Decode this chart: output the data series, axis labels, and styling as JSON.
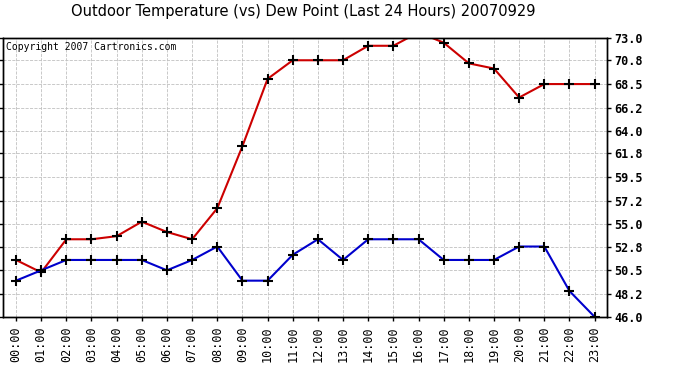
{
  "title": "Outdoor Temperature (vs) Dew Point (Last 24 Hours) 20070929",
  "copyright_text": "Copyright 2007 Cartronics.com",
  "hours": [
    "00:00",
    "01:00",
    "02:00",
    "03:00",
    "04:00",
    "05:00",
    "06:00",
    "07:00",
    "08:00",
    "09:00",
    "10:00",
    "11:00",
    "12:00",
    "13:00",
    "14:00",
    "15:00",
    "16:00",
    "17:00",
    "18:00",
    "19:00",
    "20:00",
    "21:00",
    "22:00",
    "23:00"
  ],
  "temp": [
    51.5,
    50.3,
    53.5,
    53.5,
    53.8,
    55.2,
    54.2,
    53.5,
    56.5,
    62.5,
    69.0,
    70.8,
    70.8,
    70.8,
    72.2,
    72.2,
    73.5,
    72.5,
    70.5,
    70.0,
    67.2,
    68.5,
    68.5,
    68.5
  ],
  "dew": [
    49.5,
    50.5,
    51.5,
    51.5,
    51.5,
    51.5,
    50.5,
    51.5,
    52.8,
    49.5,
    49.5,
    52.0,
    53.5,
    51.5,
    53.5,
    53.5,
    53.5,
    51.5,
    51.5,
    51.5,
    52.8,
    52.8,
    48.5,
    46.0
  ],
  "ylim_min": 46.0,
  "ylim_max": 73.0,
  "yticks": [
    46.0,
    48.2,
    50.5,
    52.8,
    55.0,
    57.2,
    59.5,
    61.8,
    64.0,
    66.2,
    68.5,
    70.8,
    73.0
  ],
  "temp_color": "#cc0000",
  "dew_color": "#0000cc",
  "grid_color": "#c0c0c0",
  "bg_color": "#ffffff",
  "title_fontsize": 10.5,
  "copyright_fontsize": 7,
  "tick_fontsize": 8.5,
  "ylabel_fontsize": 8.5
}
